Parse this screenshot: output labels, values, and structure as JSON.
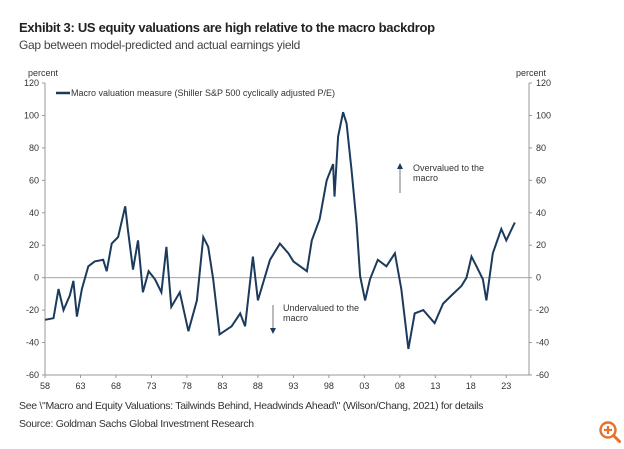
{
  "header": {
    "title": "Exhibit 3: US equity valuations are high relative to the macro backdrop",
    "subtitle": "Gap between model-predicted and actual earnings yield"
  },
  "footer": {
    "note": "See \\\"Macro and Equity Valuations: Tailwinds Behind, Headwinds Ahead\\\" (Wilson/Chang, 2021) for details",
    "source": "Source: Goldman Sachs Global Investment Research"
  },
  "colors": {
    "line": "#1b3a5c",
    "zoom_icon": "#e8702a"
  },
  "chart_data": {
    "type": "line",
    "ylabel_left": "percent",
    "ylabel_right": "percent",
    "ylim": [
      -60,
      120
    ],
    "yticks": [
      120,
      100,
      80,
      60,
      40,
      20,
      0,
      -20,
      -40,
      -60
    ],
    "xlim": [
      1958,
      2026.2
    ],
    "xticks": [
      {
        "v": 1958,
        "label": "58"
      },
      {
        "v": 1963,
        "label": "63"
      },
      {
        "v": 1968,
        "label": "68"
      },
      {
        "v": 1973,
        "label": "73"
      },
      {
        "v": 1978,
        "label": "78"
      },
      {
        "v": 1983,
        "label": "83"
      },
      {
        "v": 1988,
        "label": "88"
      },
      {
        "v": 1993,
        "label": "93"
      },
      {
        "v": 1998,
        "label": "98"
      },
      {
        "v": 2003,
        "label": "03"
      },
      {
        "v": 2008,
        "label": "08"
      },
      {
        "v": 2013,
        "label": "13"
      },
      {
        "v": 2018,
        "label": "18"
      },
      {
        "v": 2023,
        "label": "23"
      }
    ],
    "legend": "top-left",
    "series": [
      {
        "name": "Macro valuation measure (Shiller S&P 500 cyclically adjusted P/E)",
        "x": [
          1958,
          1959.2,
          1959.9,
          1960.6,
          1961.5,
          1962,
          1962.5,
          1963.2,
          1964.1,
          1965,
          1966.2,
          1966.7,
          1967.4,
          1968.3,
          1969.3,
          1969.7,
          1970.4,
          1971.1,
          1971.8,
          1972.6,
          1973.5,
          1974.4,
          1975.1,
          1975.8,
          1977,
          1978.2,
          1979.4,
          1980.3,
          1981,
          1981.7,
          1982.6,
          1984.3,
          1985.5,
          1986.2,
          1987.3,
          1988,
          1989.7,
          1991.1,
          1992.3,
          1993,
          1994.9,
          1995.6,
          1996.7,
          1997.7,
          1998.6,
          1998.8,
          1999.3,
          2000,
          2000.5,
          2001.2,
          2001.9,
          2002.4,
          2003.1,
          2003.8,
          2004.9,
          2006.1,
          2007.3,
          2008.2,
          2009.2,
          2010.1,
          2011.3,
          2012.9,
          2014.1,
          2015.5,
          2016.7,
          2017.4,
          2018.1,
          2018.8,
          2019.7,
          2020.2,
          2021.1,
          2022.3,
          2023,
          2024.2
        ],
        "y": [
          -26,
          -25,
          -7,
          -20,
          -11,
          -2,
          -24,
          -7,
          7,
          10,
          11,
          4,
          21,
          25,
          44,
          29,
          5,
          23,
          -9,
          4,
          -1,
          -9,
          19,
          -18,
          -9,
          -33,
          -14,
          25,
          19,
          -1,
          -35,
          -30,
          -22,
          -30,
          13,
          -14,
          11,
          21,
          15,
          10,
          4,
          23,
          36,
          60,
          70,
          50,
          87,
          102,
          95,
          66,
          34,
          1,
          -14,
          -1,
          11,
          7,
          15,
          -7,
          -44,
          -22,
          -20,
          -28,
          -16,
          -10,
          -5,
          0,
          13,
          7,
          -1,
          -14,
          15,
          30,
          23,
          34
        ]
      }
    ],
    "annotations": {
      "over": [
        "Overvalued to the",
        "macro"
      ],
      "under": [
        "Undervalued to the",
        "macro"
      ]
    }
  }
}
